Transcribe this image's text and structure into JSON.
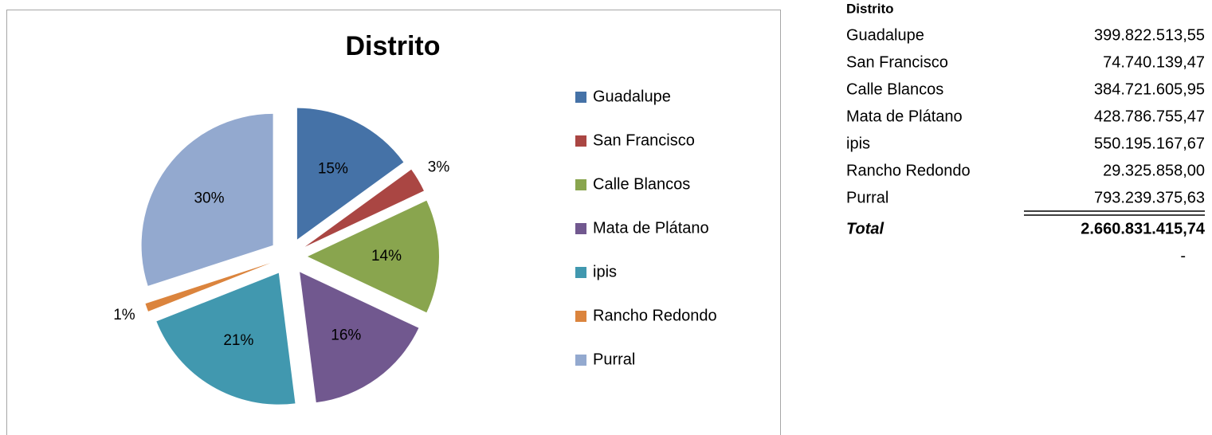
{
  "chart_data": {
    "type": "pie",
    "title": "Distrito",
    "categories": [
      "Guadalupe",
      "San Francisco",
      "Calle Blancos",
      "Mata de Plátano",
      "ipis",
      "Rancho Redondo",
      "Purral"
    ],
    "values": [
      15,
      3,
      14,
      16,
      21,
      1,
      30
    ],
    "value_labels": [
      "15%",
      "3%",
      "14%",
      "16%",
      "21%",
      "1%",
      "30%"
    ],
    "colors": [
      "#4572a7",
      "#aa4643",
      "#89a54e",
      "#71588f",
      "#4198af",
      "#db843d",
      "#93a9cf"
    ],
    "legend": "right"
  },
  "table": {
    "header": "Distrito",
    "rows": [
      [
        "Guadalupe",
        "399.822.513,55"
      ],
      [
        "San Francisco",
        "74.740.139,47"
      ],
      [
        "Calle Blancos",
        "384.721.605,95"
      ],
      [
        "Mata de Plátano",
        "428.786.755,47"
      ],
      [
        "ipis",
        "550.195.167,67"
      ],
      [
        "Rancho Redondo",
        "29.325.858,00"
      ],
      [
        "Purral",
        "793.239.375,63"
      ]
    ],
    "total": [
      "Total",
      "2.660.831.415,74"
    ],
    "note": "-"
  }
}
